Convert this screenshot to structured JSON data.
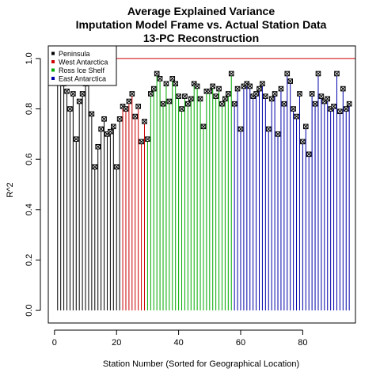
{
  "chart_data": {
    "type": "bar",
    "title_lines": [
      "Average Explained Variance",
      "Imputation Model Frame vs. Actual Station Data",
      "13-PC Reconstruction"
    ],
    "xlabel": "Station Number (Sorted for Geographical Location)",
    "ylabel": "R^2",
    "xlim": [
      -2,
      97
    ],
    "ylim": [
      -0.05,
      1.05
    ],
    "x_ticks": [
      0,
      20,
      40,
      60,
      80
    ],
    "y_ticks": [
      0.0,
      0.2,
      0.4,
      0.6,
      0.8,
      1.0
    ],
    "x_tick_labels": [
      "0",
      "20",
      "40",
      "60",
      "80"
    ],
    "y_tick_labels": [
      "0.0",
      "0.2",
      "0.4",
      "0.6",
      "0.8",
      "1.0"
    ],
    "reference_line": {
      "y": 1.0,
      "color": "#cc0000"
    },
    "legend": {
      "placement": "top-left",
      "entries": [
        {
          "label": "Peninsula",
          "color": "#000000"
        },
        {
          "label": "West Antarctica",
          "color": "#cc0000"
        },
        {
          "label": "Ross Ice Shelf",
          "color": "#00aa00"
        },
        {
          "label": "East Antarctica",
          "color": "#0000aa"
        }
      ]
    },
    "series": [
      {
        "name": "Peninsula",
        "color": "#000000",
        "x": [
          1,
          2,
          3,
          4,
          5,
          6,
          7,
          8,
          9,
          10,
          11,
          12,
          13,
          14,
          15,
          16,
          17,
          18,
          19,
          20,
          21
        ],
        "values": [
          0.92,
          0.91,
          0.9,
          0.87,
          0.8,
          0.86,
          0.68,
          0.83,
          0.86,
          0.9,
          0.91,
          0.78,
          0.57,
          0.65,
          0.72,
          0.76,
          0.7,
          0.71,
          0.73,
          0.57,
          0.76
        ]
      },
      {
        "name": "West Antarctica",
        "color": "#cc0000",
        "x": [
          22,
          23,
          24,
          25,
          26,
          27,
          28,
          29
        ],
        "values": [
          0.81,
          0.8,
          0.83,
          0.86,
          0.77,
          0.81,
          0.67,
          0.75
        ]
      },
      {
        "name": "Ross Ice Shelf",
        "color": "#00aa00",
        "x": [
          30,
          31,
          32,
          33,
          34,
          35,
          36,
          37,
          38,
          39,
          40,
          41,
          42,
          43,
          44,
          45,
          46,
          47,
          48,
          49,
          50,
          51,
          52,
          53,
          54,
          55,
          56,
          57
        ],
        "values": [
          0.68,
          0.86,
          0.88,
          0.94,
          0.92,
          0.82,
          0.9,
          0.83,
          0.92,
          0.9,
          0.85,
          0.8,
          0.85,
          0.82,
          0.84,
          0.9,
          0.89,
          0.84,
          0.73,
          0.87,
          0.87,
          0.89,
          0.85,
          0.88,
          0.82,
          0.84,
          0.86,
          0.94
        ]
      },
      {
        "name": "East Antarctica",
        "color": "#0000aa",
        "x": [
          58,
          59,
          60,
          61,
          62,
          63,
          64,
          65,
          66,
          67,
          68,
          69,
          70,
          71,
          72,
          73,
          74,
          75,
          76,
          77,
          78,
          79,
          80,
          81,
          82,
          83,
          84,
          85,
          86,
          87,
          88,
          89,
          90,
          91,
          92,
          93,
          94,
          95
        ],
        "values": [
          0.82,
          0.88,
          0.72,
          0.89,
          0.9,
          0.89,
          0.85,
          0.86,
          0.88,
          0.9,
          0.85,
          0.72,
          0.84,
          0.86,
          0.7,
          0.88,
          0.82,
          0.94,
          0.91,
          0.8,
          0.77,
          0.86,
          0.67,
          0.73,
          0.62,
          0.86,
          0.82,
          0.94,
          0.85,
          0.83,
          0.84,
          0.8,
          0.81,
          0.94,
          0.79,
          0.88,
          0.8,
          0.82
        ]
      }
    ]
  }
}
